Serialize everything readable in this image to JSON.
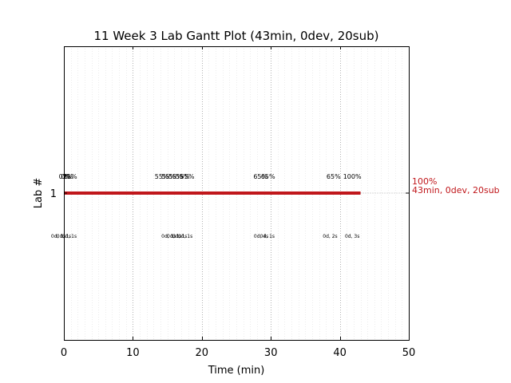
{
  "chart_data": {
    "type": "gantt",
    "title": "11 Week 3 Lab Gantt Plot (43min, 0dev, 20sub)",
    "xlabel": "Time (min)",
    "ylabel": "Lab #",
    "xlim": [
      0,
      50
    ],
    "x_ticks": [
      "0",
      "10",
      "20",
      "30",
      "40",
      "50"
    ],
    "minor_grid_step": 1,
    "grid": true,
    "bars": [
      {
        "lab": "1",
        "start": 0,
        "end": 43,
        "color": "#c0171b",
        "end_label_line1": "100%",
        "end_label_line2": "43min, 0dev, 20sub",
        "top_annotations": [
          {
            "x": 0,
            "text": "0%"
          },
          {
            "x": 0.3,
            "text": "0%"
          },
          {
            "x": 0.6,
            "text": "1%"
          },
          {
            "x": 0.9,
            "text": "21%"
          },
          {
            "x": 14.2,
            "text": "55%"
          },
          {
            "x": 15.2,
            "text": "55%"
          },
          {
            "x": 16.2,
            "text": "55%"
          },
          {
            "x": 17.2,
            "text": "55%"
          },
          {
            "x": 17.9,
            "text": "55%"
          },
          {
            "x": 28.5,
            "text": "65%"
          },
          {
            "x": 29.6,
            "text": "65%"
          },
          {
            "x": 39.1,
            "text": "65%"
          },
          {
            "x": 41.8,
            "text": "100%"
          }
        ],
        "bottom_annotations": [
          {
            "x": -0.8,
            "text": "0d, 1s"
          },
          {
            "x": 0.0,
            "text": "0d, 1s"
          },
          {
            "x": 0.8,
            "text": "0d, 1s"
          },
          {
            "x": 15.2,
            "text": "0d, 1s"
          },
          {
            "x": 16.0,
            "text": "0d, 1s"
          },
          {
            "x": 16.8,
            "text": "0d, 1s"
          },
          {
            "x": 17.6,
            "text": "0d, 1s"
          },
          {
            "x": 28.6,
            "text": "0d, 4s"
          },
          {
            "x": 29.5,
            "text": "0d, 1s"
          },
          {
            "x": 38.6,
            "text": "0d, 2s"
          },
          {
            "x": 41.8,
            "text": "0d, 3s"
          }
        ]
      }
    ]
  }
}
